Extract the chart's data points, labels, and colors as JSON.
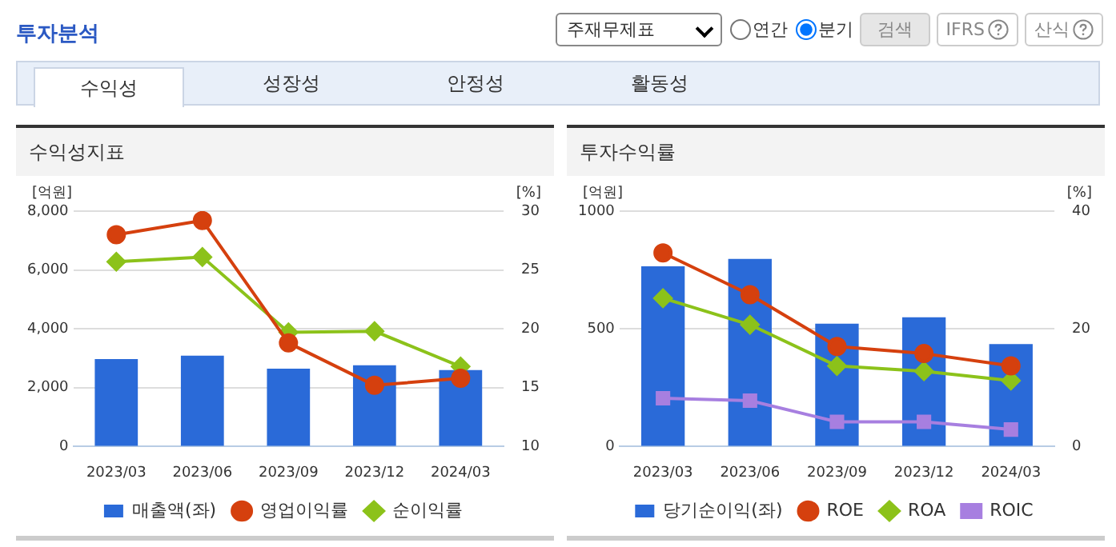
{
  "chart_data": [
    {
      "type": "bar",
      "title": "수익성지표",
      "annotations": [
        "투자분석",
        "주재무제표",
        "연간",
        "분기",
        "검색",
        "IFRS",
        "산식",
        "수익성",
        "성장성",
        "안정성",
        "활동성"
      ],
      "ylabel": "[억원]",
      "y2label": "[%]",
      "categories": [
        "2023/03",
        "2023/06",
        "2023/09",
        "2023/12",
        "2024/03"
      ],
      "series": [
        {
          "name": "매출액(좌)",
          "color": "#2a6ad8",
          "values": [
            2970,
            3090,
            2650,
            2760,
            2600
          ]
        },
        {
          "name": "영업이익률",
          "type": "line",
          "axis": "y2",
          "marker": "circle",
          "color": "#d5400e",
          "values": [
            28.0,
            29.2,
            18.8,
            15.2,
            15.8
          ]
        },
        {
          "name": "순이익률",
          "type": "line",
          "axis": "y2",
          "marker": "diamond",
          "color": "#8cc21a",
          "values": [
            25.7,
            26.1,
            19.7,
            19.8,
            16.8
          ]
        }
      ],
      "ylim": [
        0,
        8000
      ],
      "yticks": [
        0,
        {
          "value": 2000,
          "label": "2,000"
        },
        {
          "value": 4000,
          "label": "4,000"
        },
        {
          "value": 6000,
          "label": "6,000"
        },
        {
          "value": 8000,
          "label": "8,000"
        }
      ],
      "y2lim": [
        10,
        30
      ],
      "y2ticks": [
        10,
        15,
        20,
        25,
        30
      ],
      "grid": "y",
      "legend": "bottom"
    },
    {
      "type": "bar",
      "title": "투자수익률",
      "ylabel": "[억원]",
      "y2label": "[%]",
      "categories": [
        "2023/03",
        "2023/06",
        "2023/09",
        "2023/12",
        "2024/03"
      ],
      "series": [
        {
          "name": "당기순이익(좌)",
          "color": "#2a6ad8",
          "values": [
            766,
            797,
            522,
            549,
            435
          ]
        },
        {
          "name": "ROE",
          "type": "line",
          "axis": "y2",
          "marker": "circle",
          "color": "#d5400e",
          "values": [
            32.9,
            25.8,
            17.0,
            15.8,
            13.7
          ]
        },
        {
          "name": "ROA",
          "type": "line",
          "axis": "y2",
          "marker": "diamond",
          "color": "#8cc21a",
          "values": [
            25.2,
            20.7,
            13.7,
            12.8,
            11.2
          ]
        },
        {
          "name": "ROIC",
          "type": "line",
          "axis": "y2",
          "marker": "square",
          "color": "#a77fe0",
          "values": [
            8.2,
            7.8,
            4.2,
            4.2,
            2.9
          ]
        }
      ],
      "ylim": [
        0,
        1000
      ],
      "yticks": [
        0,
        500,
        1000
      ],
      "y2lim": [
        0,
        40
      ],
      "y2ticks": [
        0,
        20,
        40
      ],
      "grid": "y",
      "legend": "bottom"
    }
  ]
}
